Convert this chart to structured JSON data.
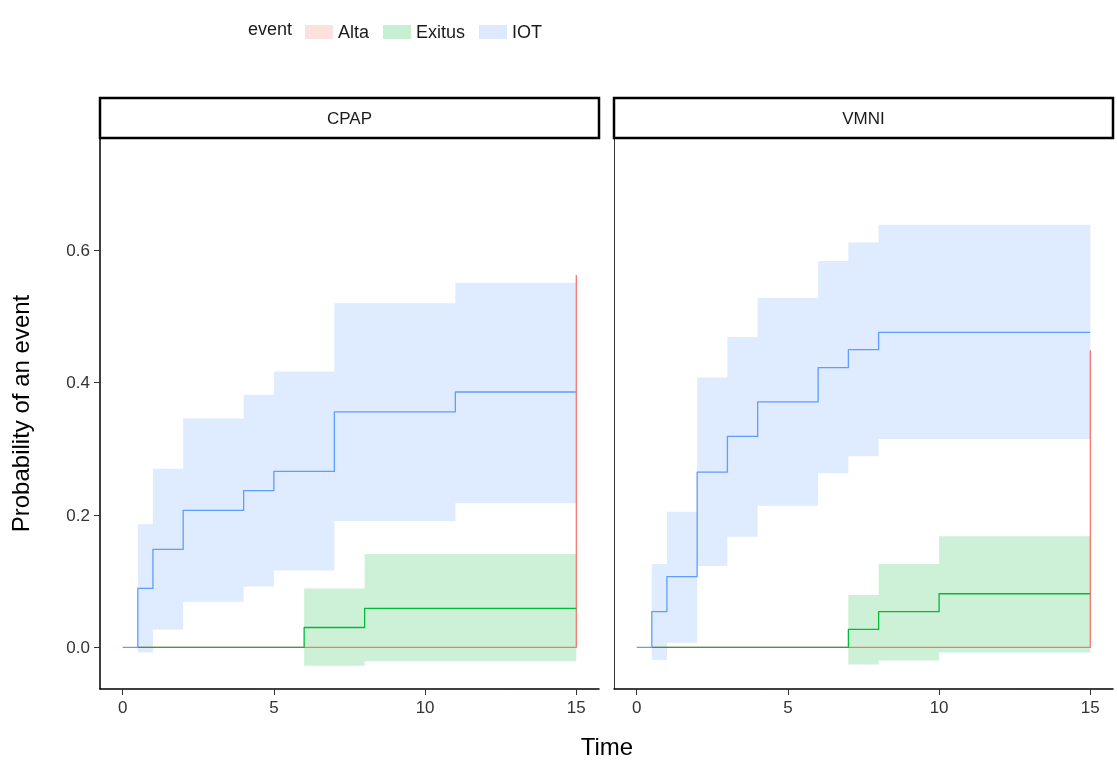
{
  "chart_data": [
    {
      "type": "step",
      "title": "CPAP",
      "ylabel": "Probability of an event",
      "xlabel": "Time",
      "legend_title": "event",
      "legend": "top",
      "xlim": [
        -0.75,
        15.75
      ],
      "xticks": [
        0,
        5,
        10,
        15
      ],
      "ylim": [
        -0.063,
        0.77
      ],
      "yticks": [
        {
          "value": 0,
          "label": "0.0"
        },
        {
          "value": 0.2,
          "label": "0.2"
        },
        {
          "value": 0.4,
          "label": "0.4"
        },
        {
          "value": 0.6,
          "label": "0.6"
        }
      ],
      "marker": "none",
      "line_style": "solid",
      "series": [
        {
          "name": "Alta",
          "color": "#f8766d",
          "x": [
            0.5,
            15,
            15
          ],
          "values": [
            0,
            0,
            0.563
          ]
        },
        {
          "name": "Exitus",
          "color": "#00ba38",
          "x": [
            0.5,
            6,
            8,
            15
          ],
          "values": [
            0,
            0.03,
            0.059,
            0.059
          ],
          "lower": [
            null,
            -0.028,
            -0.021,
            -0.021
          ],
          "upper": [
            null,
            0.089,
            0.141,
            0.141
          ]
        },
        {
          "name": "IOT",
          "color": "#619cff",
          "x": [
            0,
            0.5,
            1,
            2,
            4,
            5,
            7,
            11,
            15
          ],
          "values": [
            0,
            0.089,
            0.148,
            0.207,
            0.237,
            0.266,
            0.356,
            0.386,
            0.386
          ],
          "lower": [
            null,
            -0.008,
            0.027,
            0.069,
            0.092,
            0.116,
            0.191,
            0.218,
            0.218
          ],
          "upper": [
            null,
            0.186,
            0.27,
            0.346,
            0.382,
            0.417,
            0.52,
            0.551,
            0.551
          ]
        }
      ]
    },
    {
      "type": "step",
      "title": "VMNI",
      "tick_labels": "x",
      "xlim": [
        -0.75,
        15.75
      ],
      "xticks": [
        0,
        5,
        10,
        15
      ],
      "ylim": [
        -0.063,
        0.77
      ],
      "marker": "none",
      "line_style": "solid",
      "series": [
        {
          "color": "#f8766d",
          "x": [
            0.5,
            15,
            15
          ],
          "values": [
            0,
            0,
            0.449
          ]
        },
        {
          "color": "#00ba38",
          "x": [
            0.5,
            7,
            8,
            10,
            15
          ],
          "values": [
            0,
            0.027,
            0.054,
            0.081,
            0.081
          ],
          "lower": [
            null,
            -0.026,
            -0.02,
            -0.008,
            -0.008
          ],
          "upper": [
            null,
            0.079,
            0.126,
            0.168,
            0.168
          ]
        },
        {
          "color": "#619cff",
          "x": [
            0,
            0.5,
            1,
            2,
            3,
            4,
            6,
            7,
            8,
            15
          ],
          "values": [
            0,
            0.054,
            0.107,
            0.265,
            0.319,
            0.371,
            0.423,
            0.45,
            0.476,
            0.476
          ],
          "lower": [
            null,
            -0.019,
            0.007,
            0.123,
            0.167,
            0.214,
            0.263,
            0.289,
            0.315,
            0.315
          ],
          "upper": [
            null,
            0.126,
            0.205,
            0.408,
            0.469,
            0.528,
            0.584,
            0.612,
            0.639,
            0.639
          ]
        }
      ]
    }
  ]
}
